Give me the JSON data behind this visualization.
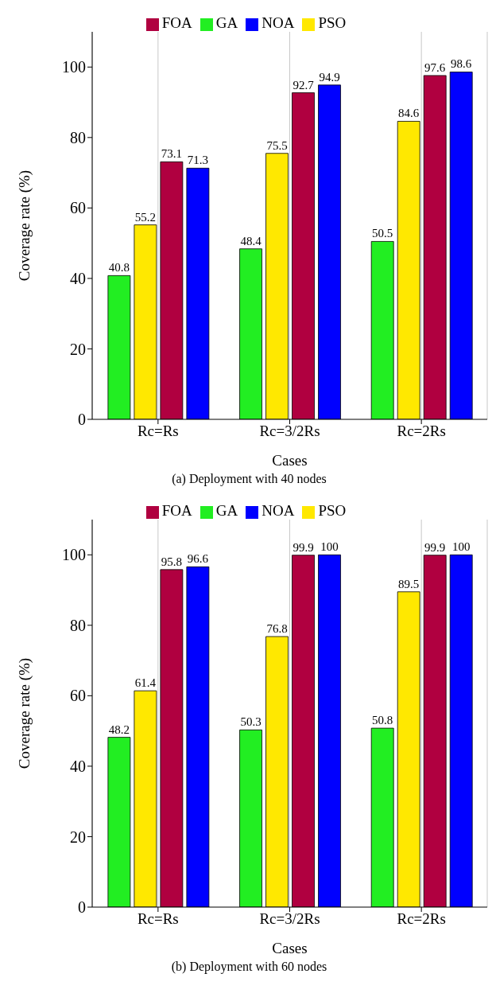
{
  "chart_data": [
    {
      "type": "bar",
      "xlabel": "Cases",
      "ylabel": "Coverage rate (%)",
      "categories": [
        "Rc=Rs",
        "Rc=3/2Rs",
        "Rc=2Rs"
      ],
      "series": [
        {
          "name": "GA",
          "color": "#22ee22",
          "values": [
            40.8,
            48.4,
            50.5
          ]
        },
        {
          "name": "PSO",
          "color": "#ffe800",
          "values": [
            55.2,
            75.5,
            84.6
          ]
        },
        {
          "name": "FOA",
          "color": "#b00040",
          "values": [
            73.1,
            92.7,
            97.6
          ]
        },
        {
          "name": "NOA",
          "color": "#0000ff",
          "values": [
            71.3,
            94.9,
            98.6
          ]
        }
      ],
      "ylim": [
        0,
        110
      ],
      "yticks": [
        0,
        20,
        40,
        60,
        80,
        100
      ],
      "grid": "x",
      "legend": "top",
      "data_labels": true,
      "annotations": [
        "(a) Deployment with 40 nodes"
      ]
    },
    {
      "type": "bar",
      "xlabel": "Cases",
      "ylabel": "Coverage rate (%)",
      "categories": [
        "Rc=Rs",
        "Rc=3/2Rs",
        "Rc=2Rs"
      ],
      "series": [
        {
          "name": "GA",
          "color": "#22ee22",
          "values": [
            48.2,
            50.3,
            50.8
          ]
        },
        {
          "name": "PSO",
          "color": "#ffe800",
          "values": [
            61.4,
            76.8,
            89.5
          ]
        },
        {
          "name": "FOA",
          "color": "#b00040",
          "values": [
            95.8,
            99.9,
            99.9
          ]
        },
        {
          "name": "NOA",
          "color": "#0000ff",
          "values": [
            96.6,
            100,
            100
          ]
        }
      ],
      "ylim": [
        0,
        110
      ],
      "yticks": [
        0,
        20,
        40,
        60,
        80,
        100
      ],
      "grid": "x",
      "legend": "top",
      "data_labels": true,
      "annotations": [
        "(b) Deployment with 60 nodes"
      ]
    }
  ]
}
